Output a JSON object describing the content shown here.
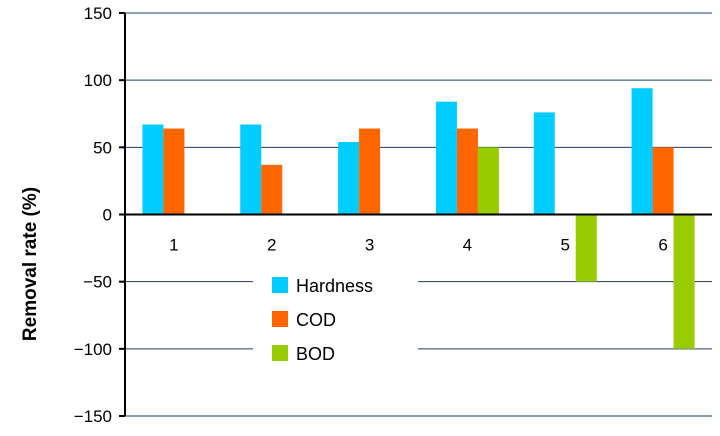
{
  "chart_data": {
    "type": "bar",
    "title": "",
    "xlabel": "",
    "ylabel": "Removal rate (%)",
    "ylim": [
      -150,
      150
    ],
    "yticks": [
      150,
      100,
      50,
      0,
      -50,
      -100,
      -150
    ],
    "ytick_labels": [
      "150",
      "100",
      "50",
      "0",
      "−50",
      "−100",
      "−150"
    ],
    "grid": true,
    "legend": "center-left",
    "categories": [
      "1",
      "2",
      "3",
      "4",
      "5",
      "6"
    ],
    "series": [
      {
        "name": "Hardness",
        "color": "#00ccff",
        "values": [
          67,
          67,
          54,
          84,
          76,
          94
        ]
      },
      {
        "name": "COD",
        "color": "#ff6600",
        "values": [
          64,
          37,
          64,
          64,
          0,
          50
        ]
      },
      {
        "name": "BOD",
        "color": "#99cc00",
        "values": [
          0,
          0,
          0,
          50,
          -50,
          -100
        ]
      }
    ]
  }
}
